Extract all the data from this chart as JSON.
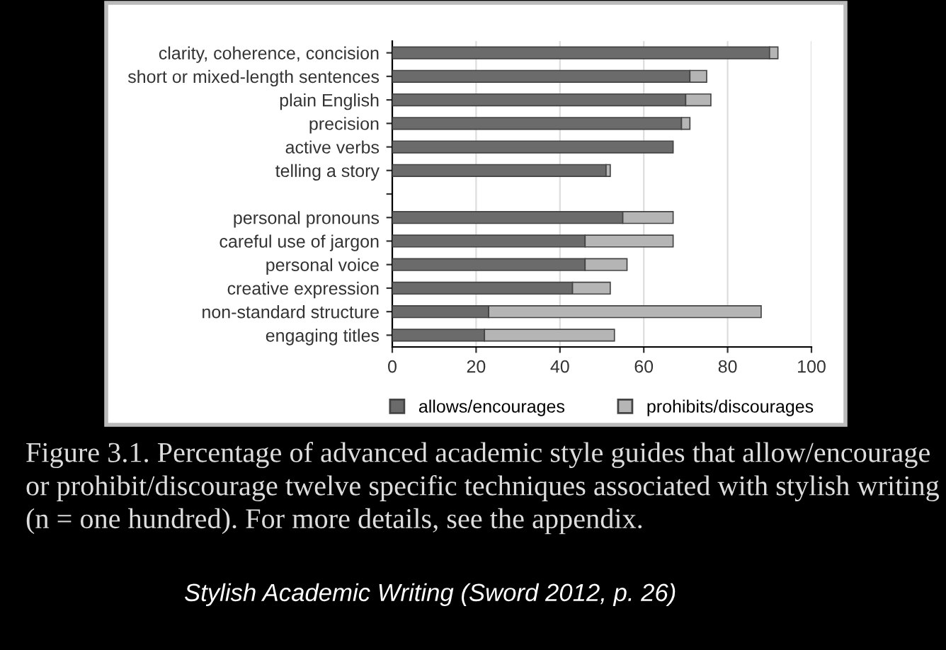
{
  "chart_data": {
    "type": "bar",
    "orientation": "horizontal",
    "stacked": true,
    "categories": [
      "clarity, coherence, concision",
      "short or mixed-length sentences",
      "plain English",
      "precision",
      "active verbs",
      "telling a story",
      null,
      "personal pronouns",
      "careful use of jargon",
      "personal voice",
      "creative expression",
      "non-standard structure",
      "engaging titles"
    ],
    "series": [
      {
        "name": "allows/encourages",
        "color": "#6b6b6b",
        "values": [
          90,
          71,
          70,
          69,
          67,
          51,
          null,
          55,
          46,
          46,
          43,
          23,
          22
        ]
      },
      {
        "name": "prohibits/discourages",
        "color": "#b5b5b5",
        "values": [
          2,
          4,
          6,
          2,
          null,
          1,
          null,
          12,
          21,
          10,
          9,
          65,
          31
        ]
      }
    ],
    "xlim": [
      0,
      100
    ],
    "xticks": [
      0,
      20,
      40,
      60,
      80,
      100
    ],
    "grid": "x",
    "legend": "bottom",
    "annotations": [
      "Figure 3.1. Percentage of advanced academic style guides that allow/encourage or prohibit/discourage twelve specific techniques associated with stylish writing (n = one hundred). For more details, see the appendix.",
      "Stylish Academic Writing (Sword 2012, p. 26)"
    ]
  }
}
